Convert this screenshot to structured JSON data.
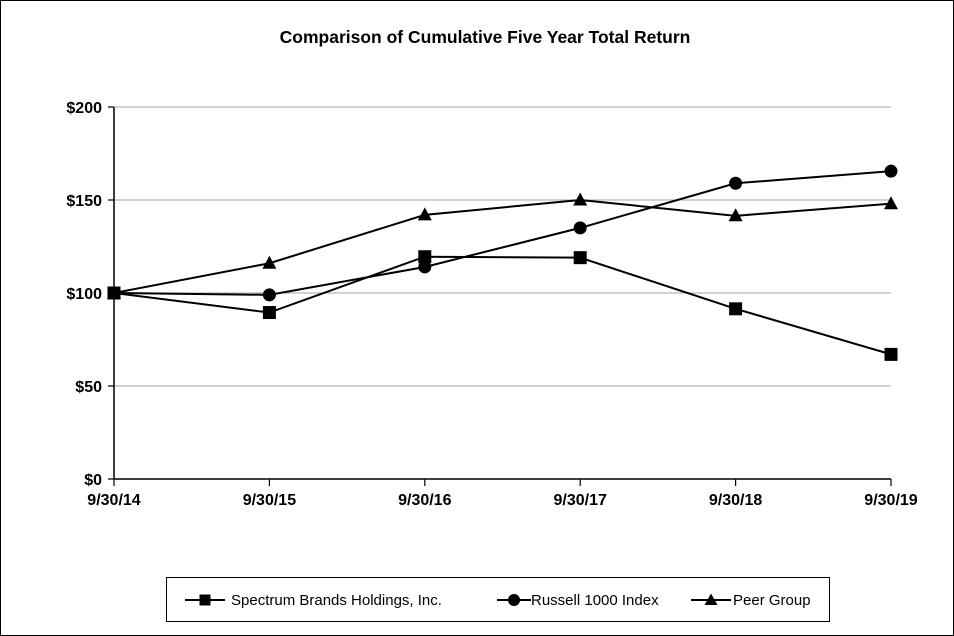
{
  "chart_data": {
    "type": "line",
    "title": "Comparison of Cumulative Five Year Total Return",
    "xlabel": "",
    "ylabel": "",
    "categories": [
      "9/30/14",
      "9/30/15",
      "9/30/16",
      "9/30/17",
      "9/30/18",
      "9/30/19"
    ],
    "y_tick_labels": [
      "$0",
      "$50",
      "$100",
      "$150",
      "$200"
    ],
    "y_ticks": [
      0,
      50,
      100,
      150,
      200
    ],
    "ylim": [
      0,
      200
    ],
    "grid": true,
    "legend_position": "bottom",
    "series": [
      {
        "name": "Spectrum Brands Holdings, Inc.",
        "marker": "square",
        "values": [
          100,
          89.5,
          119.5,
          119,
          91.5,
          67
        ]
      },
      {
        "name": "Russell 1000 Index",
        "marker": "circle",
        "values": [
          100,
          99,
          114,
          135,
          159,
          165.5
        ]
      },
      {
        "name": "Peer Group",
        "marker": "triangle",
        "values": [
          100,
          116,
          142,
          150,
          141.5,
          148
        ]
      }
    ]
  },
  "colors": {
    "line": "#000000",
    "grid": "#a6a6a6",
    "background": "#ffffff"
  }
}
